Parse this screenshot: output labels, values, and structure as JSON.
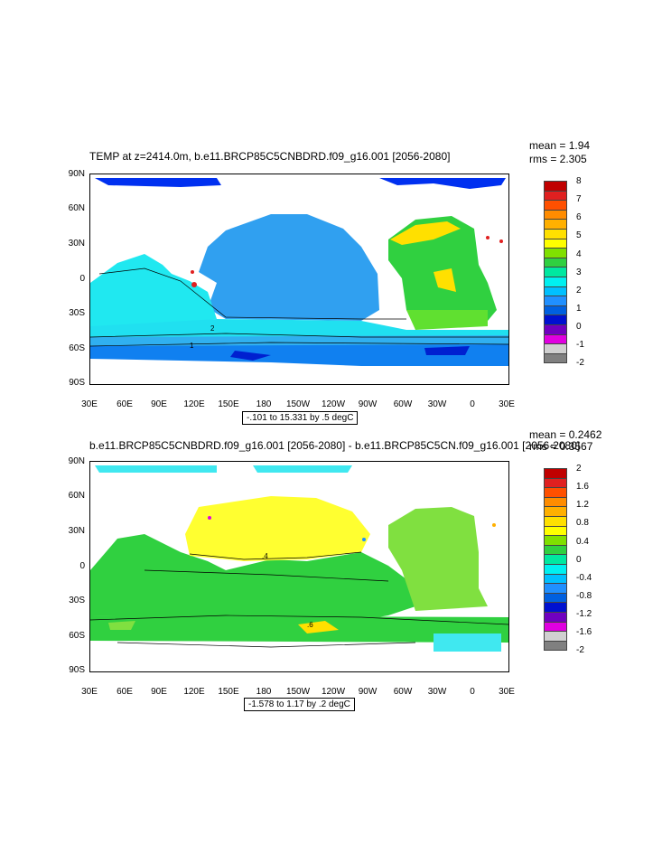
{
  "chart_data": [
    {
      "type": "heatmap",
      "title": "TEMP at z=2414.0m, b.e11.BRCP85C5CNBDRD.f09_g16.001 [2056-2080]",
      "stats": {
        "mean": "mean = 1.94",
        "rms": "rms = 2.305"
      },
      "x_ticks": [
        "30E",
        "60E",
        "90E",
        "120E",
        "150E",
        "180",
        "150W",
        "120W",
        "90W",
        "60W",
        "30W",
        "0",
        "30E"
      ],
      "y_ticks": [
        "90N",
        "60N",
        "30N",
        "0",
        "30S",
        "60S",
        "90S"
      ],
      "range_label": "-.101 to 15.331 by .5 degC",
      "contour_labels": [
        "2",
        "1"
      ],
      "colorbar_labels": [
        "8",
        "7",
        "6",
        "5",
        "4",
        "3",
        "2",
        "1",
        "0",
        "-1",
        "-2"
      ],
      "colorbar_colors": [
        "#c00000",
        "#e02020",
        "#ff5000",
        "#ff8c00",
        "#ffb000",
        "#ffe000",
        "#ffff00",
        "#80e000",
        "#30d040",
        "#00e8a0",
        "#00f0f0",
        "#00c0ff",
        "#2090ff",
        "#0060e0",
        "#0010d0",
        "#7000c0",
        "#e000e0",
        "#d0d0d0",
        "#808080"
      ]
    },
    {
      "type": "heatmap",
      "title": "b.e11.BRCP85C5CNBDRD.f09_g16.001 [2056-2080] - b.e11.BRCP85C5CN.f09_g16.001 [2056-2080]",
      "stats": {
        "mean": "mean = 0.2462",
        "rms": "rms = 0.3567"
      },
      "x_ticks": [
        "30E",
        "60E",
        "90E",
        "120E",
        "150E",
        "180",
        "150W",
        "120W",
        "90W",
        "60W",
        "30W",
        "0",
        "30E"
      ],
      "y_ticks": [
        "90N",
        "60N",
        "30N",
        "0",
        "30S",
        "60S",
        "90S"
      ],
      "range_label": "-1.578 to 1.17 by .2 degC",
      "contour_labels": [
        ".4",
        ".6"
      ],
      "colorbar_labels": [
        "2",
        "1.6",
        "1.2",
        "0.8",
        "0.4",
        "0",
        "-0.4",
        "-0.8",
        "-1.2",
        "-1.6",
        "-2"
      ],
      "colorbar_colors": [
        "#c00000",
        "#e02020",
        "#ff5000",
        "#ff8c00",
        "#ffb000",
        "#ffe000",
        "#ffff00",
        "#80e000",
        "#30d040",
        "#00e8a0",
        "#00f0f0",
        "#00c0ff",
        "#2090ff",
        "#0060e0",
        "#0010d0",
        "#7000c0",
        "#e000e0",
        "#d0d0d0",
        "#808080"
      ]
    }
  ]
}
